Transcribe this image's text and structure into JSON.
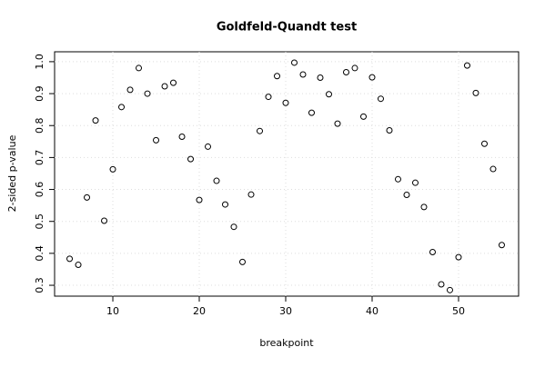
{
  "chart_data": {
    "type": "scatter",
    "title": "Goldfeld-Quandt test",
    "xlabel": "breakpoint",
    "ylabel": "2-sided p-value",
    "x": [
      5,
      6,
      7,
      8,
      9,
      10,
      11,
      12,
      13,
      14,
      15,
      16,
      17,
      18,
      19,
      20,
      21,
      22,
      23,
      24,
      25,
      26,
      27,
      28,
      29,
      30,
      31,
      32,
      33,
      34,
      35,
      36,
      37,
      38,
      39,
      40,
      41,
      42,
      43,
      44,
      45,
      46,
      47,
      48,
      49,
      50,
      51,
      52,
      53,
      54,
      55
    ],
    "values": [
      0.383,
      0.364,
      0.575,
      0.816,
      0.502,
      0.663,
      0.858,
      0.912,
      0.98,
      0.9,
      0.754,
      0.923,
      0.934,
      0.765,
      0.695,
      0.567,
      0.734,
      0.627,
      0.553,
      0.483,
      0.373,
      0.584,
      0.783,
      0.89,
      0.955,
      0.871,
      0.997,
      0.96,
      0.84,
      0.95,
      0.898,
      0.806,
      0.967,
      0.98,
      0.828,
      0.951,
      0.884,
      0.785,
      0.632,
      0.583,
      0.621,
      0.545,
      0.404,
      0.303,
      0.285,
      0.388,
      0.988,
      0.902,
      0.743,
      0.664,
      0.426
    ],
    "color": "#000000",
    "xlim": [
      3.26,
      56.95
    ],
    "xticks": [
      10,
      20,
      30,
      40,
      50
    ],
    "ylim": [
      0.266,
      1.031
    ],
    "yticks": [
      0.3,
      0.4,
      0.5,
      0.6,
      0.7,
      0.8,
      0.9,
      {
        "value": 1,
        "label": "1.0"
      }
    ],
    "grid": true
  }
}
